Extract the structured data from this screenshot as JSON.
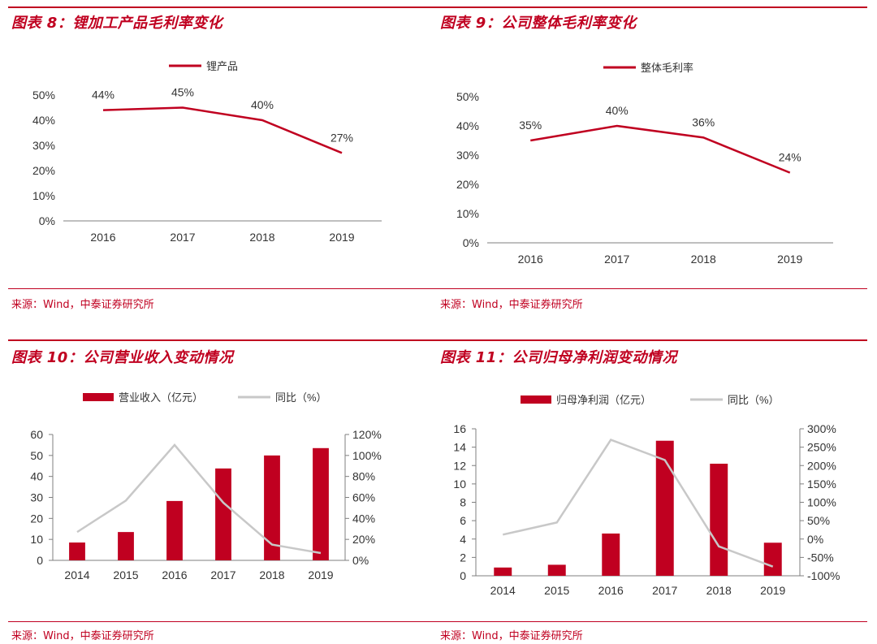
{
  "colors": {
    "accent": "#c00020",
    "yoy_line": "#c8c8c8",
    "axis": "#7f7f7f",
    "text": "#333333"
  },
  "panels": [
    {
      "title": "图表 8：锂加工产品毛利率变化",
      "source": "来源：Wind，中泰证券研究所",
      "chart_data": {
        "type": "line",
        "categories": [
          "2016",
          "2017",
          "2018",
          "2019"
        ],
        "series": [
          {
            "name": "锂产品",
            "values": [
              44,
              45,
              40,
              27
            ],
            "labels": [
              "44%",
              "45%",
              "40%",
              "27%"
            ]
          }
        ],
        "ylim": [
          0,
          50
        ],
        "yticks": [
          "0%",
          "10%",
          "20%",
          "30%",
          "40%",
          "50%"
        ],
        "legend": "top-center"
      }
    },
    {
      "title": "图表 9：公司整体毛利率变化",
      "source": "来源：Wind，中泰证券研究所",
      "chart_data": {
        "type": "line",
        "categories": [
          "2016",
          "2017",
          "2018",
          "2019"
        ],
        "series": [
          {
            "name": "整体毛利率",
            "values": [
              35,
              40,
              36,
              24
            ],
            "labels": [
              "35%",
              "40%",
              "36%",
              "24%"
            ]
          }
        ],
        "ylim": [
          0,
          50
        ],
        "yticks": [
          "0%",
          "10%",
          "20%",
          "30%",
          "40%",
          "50%"
        ],
        "legend": "top-center"
      }
    },
    {
      "title": "图表 10：公司营业收入变动情况",
      "source": "来源：Wind，中泰证券研究所",
      "chart_data": {
        "type": "bar",
        "categories": [
          "2014",
          "2015",
          "2016",
          "2017",
          "2018",
          "2019"
        ],
        "series": [
          {
            "name": "营业收入（亿元）",
            "type": "bar",
            "axis": "left",
            "values": [
              8.5,
              13.5,
              28.3,
              43.8,
              50.0,
              53.5
            ]
          },
          {
            "name": "同比（%）",
            "type": "line",
            "axis": "right",
            "values": [
              27,
              57,
              110,
              55,
              15,
              7
            ]
          }
        ],
        "ylim": [
          0,
          60
        ],
        "yticks": [
          "0",
          "10",
          "20",
          "30",
          "40",
          "50",
          "60"
        ],
        "y2lim": [
          0,
          120
        ],
        "y2ticks": [
          "0%",
          "20%",
          "40%",
          "60%",
          "80%",
          "100%",
          "120%"
        ],
        "legend": "top-center"
      }
    },
    {
      "title": "图表 11：公司归母净利润变动情况",
      "source": "来源：Wind，中泰证券研究所",
      "chart_data": {
        "type": "bar",
        "categories": [
          "2014",
          "2015",
          "2016",
          "2017",
          "2018",
          "2019"
        ],
        "series": [
          {
            "name": "归母净利润（亿元）",
            "type": "bar",
            "axis": "left",
            "values": [
              0.9,
              1.2,
              4.6,
              14.7,
              12.2,
              3.6
            ]
          },
          {
            "name": "同比（%）",
            "type": "line",
            "axis": "right",
            "values": [
              12,
              45,
              270,
              215,
              -20,
              -75
            ]
          }
        ],
        "ylim": [
          0,
          16
        ],
        "yticks": [
          "0",
          "2",
          "4",
          "6",
          "8",
          "10",
          "12",
          "14",
          "16"
        ],
        "y2lim": [
          -100,
          300
        ],
        "y2ticks": [
          "-100%",
          "-50%",
          "0%",
          "50%",
          "100%",
          "150%",
          "200%",
          "250%",
          "300%"
        ],
        "legend": "top-center"
      }
    }
  ]
}
